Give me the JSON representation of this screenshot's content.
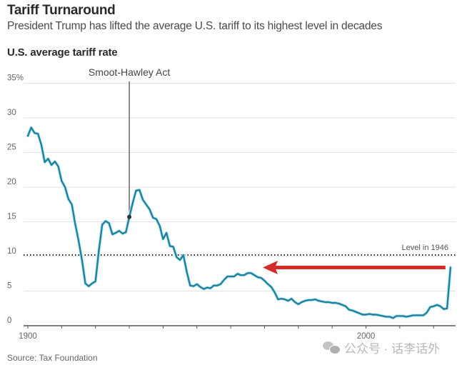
{
  "header": {
    "title": "Tariff Turnaround",
    "subtitle": "President Trump has lifted the average U.S. tariff to its highest level in decades"
  },
  "footer": {
    "source": "Source: Tax Foundation",
    "watermark": "公众号 · 话李话外"
  },
  "colors": {
    "line": "#23809b",
    "line_halo": "#bfeefa",
    "arrow": "#d42a2a",
    "gridline": "#e3e3e3",
    "axis": "#555555",
    "reference_line": "#222222"
  },
  "chart_data": {
    "type": "line",
    "title": "U.S. average tariff rate",
    "xlabel": "",
    "ylabel": "",
    "xlim": [
      1897,
      2026
    ],
    "ylim": [
      0,
      35
    ],
    "x_ticks": [
      1900,
      1910,
      1920,
      1930,
      1940,
      1950,
      1960,
      1970,
      1980,
      1990,
      2000,
      2010,
      2020
    ],
    "x_tick_labels": [
      {
        "value": 1900,
        "label": "1900"
      },
      {
        "value": 2000,
        "label": "2000"
      }
    ],
    "y_ticks": [
      {
        "value": 0,
        "label": "0"
      },
      {
        "value": 5,
        "label": "5"
      },
      {
        "value": 10,
        "label": "10"
      },
      {
        "value": 15,
        "label": "15"
      },
      {
        "value": 20,
        "label": "20"
      },
      {
        "value": 25,
        "label": "25"
      },
      {
        "value": 30,
        "label": "30"
      },
      {
        "value": 35,
        "label": "35%"
      }
    ],
    "grid": true,
    "series": [
      {
        "name": "U.S. average tariff rate",
        "x": [
          1900,
          1901,
          1902,
          1903,
          1904,
          1905,
          1906,
          1907,
          1908,
          1909,
          1910,
          1911,
          1912,
          1913,
          1914,
          1915,
          1916,
          1917,
          1918,
          1919,
          1920,
          1921,
          1922,
          1923,
          1924,
          1925,
          1926,
          1927,
          1928,
          1929,
          1930,
          1931,
          1932,
          1933,
          1934,
          1935,
          1936,
          1937,
          1938,
          1939,
          1940,
          1941,
          1942,
          1943,
          1944,
          1945,
          1946,
          1947,
          1948,
          1949,
          1950,
          1951,
          1952,
          1953,
          1954,
          1955,
          1956,
          1957,
          1958,
          1959,
          1960,
          1961,
          1962,
          1963,
          1964,
          1965,
          1966,
          1967,
          1968,
          1969,
          1970,
          1971,
          1972,
          1973,
          1974,
          1975,
          1976,
          1977,
          1978,
          1979,
          1980,
          1981,
          1982,
          1983,
          1984,
          1985,
          1986,
          1987,
          1988,
          1989,
          1990,
          1991,
          1992,
          1993,
          1994,
          1995,
          1996,
          1997,
          1998,
          1999,
          2000,
          2001,
          2002,
          2003,
          2004,
          2005,
          2006,
          2007,
          2008,
          2009,
          2010,
          2011,
          2012,
          2013,
          2014,
          2015,
          2016,
          2017,
          2018,
          2019,
          2020,
          2021,
          2022,
          2023,
          2024,
          2025
        ],
        "values": [
          27.4,
          28.6,
          27.8,
          27.7,
          26.1,
          23.6,
          24.1,
          23.2,
          23.7,
          23.0,
          20.9,
          20.0,
          18.3,
          17.5,
          14.7,
          12.3,
          9.5,
          6.1,
          5.7,
          6.1,
          6.4,
          10.8,
          14.6,
          15.1,
          14.8,
          13.2,
          13.4,
          13.7,
          13.3,
          13.5,
          15.7,
          17.7,
          19.5,
          19.6,
          18.2,
          17.5,
          16.8,
          15.6,
          15.4,
          14.4,
          12.5,
          13.4,
          11.5,
          11.4,
          9.9,
          9.5,
          10.2,
          7.8,
          5.8,
          5.7,
          6.0,
          5.6,
          5.3,
          5.5,
          5.4,
          5.8,
          5.8,
          6.0,
          6.6,
          7.1,
          7.1,
          7.1,
          7.5,
          7.3,
          7.3,
          7.6,
          7.6,
          7.3,
          7.0,
          6.9,
          6.5,
          6.0,
          5.6,
          4.8,
          3.8,
          3.9,
          3.8,
          3.6,
          3.9,
          3.4,
          3.1,
          3.4,
          3.6,
          3.7,
          3.7,
          3.8,
          3.6,
          3.5,
          3.4,
          3.4,
          3.3,
          3.3,
          3.2,
          3.0,
          2.8,
          2.3,
          2.2,
          2.0,
          1.8,
          1.6,
          1.6,
          1.7,
          1.6,
          1.6,
          1.5,
          1.4,
          1.3,
          1.3,
          1.1,
          1.4,
          1.4,
          1.4,
          1.3,
          1.4,
          1.5,
          1.5,
          1.5,
          1.5,
          1.9,
          2.7,
          2.8,
          3.0,
          2.8,
          2.4,
          2.5,
          8.4
        ]
      }
    ],
    "annotations": [
      {
        "type": "vertical-marker",
        "x": 1930,
        "y": 15.7,
        "label": "Smoot-Hawley Act"
      },
      {
        "type": "reference-line",
        "y": 10.2,
        "label": "Level in 1946",
        "style": "dotted"
      },
      {
        "type": "arrow",
        "direction": "left",
        "y": 8.4,
        "x_from": 2023.5,
        "x_to": 1969.5,
        "color": "#d42a2a"
      }
    ],
    "legend": "none"
  }
}
